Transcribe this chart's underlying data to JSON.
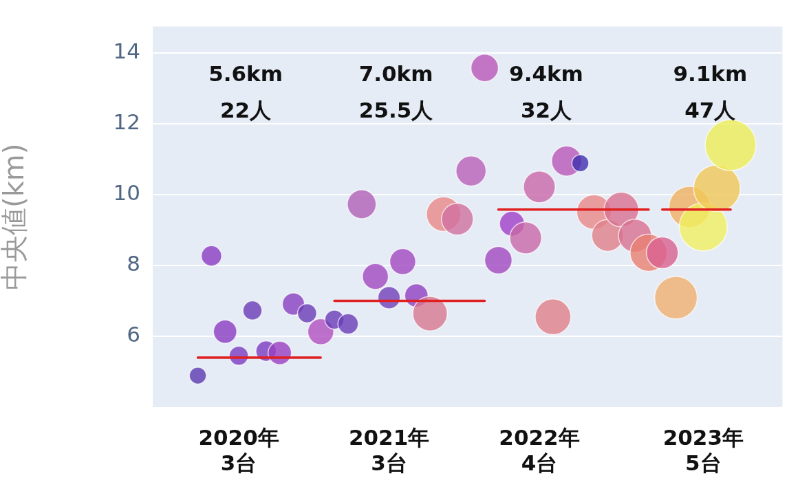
{
  "chart_data": {
    "type": "bubble",
    "ylabel": "中央値(km)",
    "categories": [
      null,
      null,
      null,
      "2020年\n3台",
      null,
      null,
      null,
      null,
      null,
      null,
      null,
      null,
      null,
      null,
      "2021年\n3台",
      null,
      null,
      null,
      null,
      null,
      null,
      null,
      null,
      null,
      null,
      "2022年\n4台",
      null,
      null,
      null,
      null,
      null,
      null,
      null,
      null,
      null,
      null,
      null,
      "2023年\n5台",
      null,
      null
    ],
    "ylim": [
      4,
      14.75
    ],
    "yticks": [
      6,
      8,
      10,
      12,
      14
    ],
    "grid": "y",
    "legend": false,
    "annotations": [
      "5.6km\n22人",
      "7.0km\n25.5人",
      "9.4km\n32人",
      "9.1km\n47人"
    ],
    "series": [
      {
        "values": [
          4.89,
          8.27,
          6.13,
          5.45,
          6.73,
          5.58,
          5.53,
          6.91,
          6.65,
          6.13,
          6.47,
          6.35,
          9.73,
          7.69,
          7.09,
          8.11,
          7.15,
          6.64,
          9.45,
          9.31,
          10.67,
          13.58,
          8.15,
          9.18,
          8.78,
          10.22,
          6.55,
          10.95,
          10.89,
          9.51,
          8.85,
          9.58,
          8.84,
          8.36,
          8.36,
          7.09,
          9.65,
          9.09,
          10.18,
          11.4
        ],
        "sizes": [
          0.11,
          0.16,
          0.21,
          0.14,
          0.14,
          0.16,
          0.21,
          0.19,
          0.14,
          0.26,
          0.14,
          0.16,
          0.32,
          0.26,
          0.19,
          0.26,
          0.21,
          0.46,
          0.46,
          0.39,
          0.35,
          0.29,
          0.29,
          0.24,
          0.39,
          0.39,
          0.49,
          0.35,
          0.11,
          0.46,
          0.39,
          0.46,
          0.42,
          0.53,
          0.39,
          0.7,
          0.66,
          0.89,
          0.84,
          1
        ],
        "colors": [
          "#5a3ab0",
          "#8a3cc0",
          "#8a3cc0",
          "#7a3cc0",
          "#6a3cb8",
          "#7a3cc0",
          "#9a40c0",
          "#8a40c0",
          "#6a3cb8",
          "#b050c0",
          "#6a3cb8",
          "#6a3cb8",
          "#b060b8",
          "#a048c0",
          "#7040b8",
          "#a048c0",
          "#9040c0",
          "#d87890",
          "#e88888",
          "#d070a0",
          "#b860b8",
          "#b858b8",
          "#a048c0",
          "#a040c8",
          "#c868a8",
          "#c868a8",
          "#e08088",
          "#b858b8",
          "#4030b0",
          "#e88888",
          "#e08088",
          "#d87090",
          "#d87090",
          "#e88070",
          "#d86090",
          "#f0b070",
          "#f0b060",
          "#f0f060",
          "#f0c858",
          "#eeee58"
        ]
      },
      {
        "type": "line",
        "color": "#e02020",
        "values": [
          5.4,
          5.4,
          5.4,
          5.4,
          5.4,
          5.4,
          5.4,
          5.4,
          5.4,
          5.4,
          null,
          null,
          null,
          null,
          null,
          null,
          null,
          null,
          null,
          null,
          null,
          null,
          null,
          null,
          null,
          null,
          null,
          null,
          null,
          null,
          null,
          null,
          null,
          null,
          null,
          null,
          null,
          null,
          null,
          null
        ]
      },
      {
        "type": "line",
        "color": "#e02020",
        "values": [
          null,
          null,
          null,
          null,
          null,
          null,
          null,
          null,
          null,
          null,
          7.0,
          7.0,
          7.0,
          7.0,
          7.0,
          7.0,
          7.0,
          7.0,
          7.0,
          7.0,
          7.0,
          7.0,
          null,
          null,
          null,
          null,
          null,
          null,
          null,
          null,
          null,
          null,
          null,
          null,
          null,
          null,
          null,
          null,
          null,
          null
        ]
      },
      {
        "type": "line",
        "color": "#e02020",
        "values": [
          null,
          null,
          null,
          null,
          null,
          null,
          null,
          null,
          null,
          null,
          null,
          null,
          null,
          null,
          null,
          null,
          null,
          null,
          null,
          null,
          null,
          null,
          9.58,
          9.58,
          9.58,
          9.58,
          9.58,
          9.58,
          9.58,
          9.58,
          9.58,
          9.58,
          9.58,
          9.58,
          null,
          null,
          null,
          null,
          null,
          null
        ]
      },
      {
        "type": "line",
        "color": "#e02020",
        "values": [
          null,
          null,
          null,
          null,
          null,
          null,
          null,
          null,
          null,
          null,
          null,
          null,
          null,
          null,
          null,
          null,
          null,
          null,
          null,
          null,
          null,
          null,
          null,
          null,
          null,
          null,
          null,
          null,
          null,
          null,
          null,
          null,
          null,
          null,
          9.58,
          9.58,
          9.58,
          9.58,
          9.58,
          9.58
        ]
      }
    ]
  }
}
